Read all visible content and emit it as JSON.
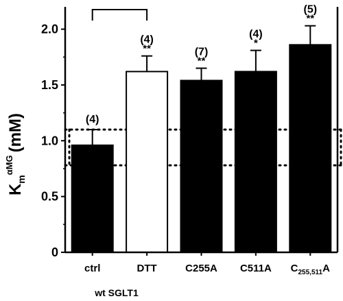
{
  "chart_data": {
    "type": "bar",
    "categories": [
      "ctrl",
      "DTT",
      "C255A",
      "C511A",
      "C255,511A"
    ],
    "category_labels": [
      {
        "main": "ctrl",
        "sub": ""
      },
      {
        "main": "DTT",
        "sub": ""
      },
      {
        "main": "C255A",
        "sub": ""
      },
      {
        "main": "C511A",
        "sub": ""
      },
      {
        "main": "C",
        "sub": "255,511",
        "suffix": "A"
      }
    ],
    "values": [
      0.96,
      1.62,
      1.54,
      1.62,
      1.86
    ],
    "errors": [
      0.14,
      0.14,
      0.11,
      0.19,
      0.17
    ],
    "fills": [
      "#000000",
      "#ffffff",
      "#000000",
      "#000000",
      "#000000"
    ],
    "n_labels": [
      "(4)",
      "(4)",
      "(7)",
      "(4)",
      "(5)"
    ],
    "significance": [
      "",
      "**",
      "**",
      "*",
      "**"
    ],
    "ylabel_main": "K",
    "ylabel_sub": "m",
    "ylabel_sup": "αMG",
    "ylabel_unit": "(mM)",
    "ylim": [
      0,
      2.2
    ],
    "yticks": [
      "0",
      "0.5",
      "1.0",
      "1.5",
      "2.0"
    ],
    "ytick_values": [
      0,
      0.5,
      1.0,
      1.5,
      2.0
    ],
    "reference_lines": [
      0.78,
      1.1
    ],
    "bracket": [
      "ctrl",
      "DTT"
    ],
    "group_label": "wt SGLT1"
  }
}
